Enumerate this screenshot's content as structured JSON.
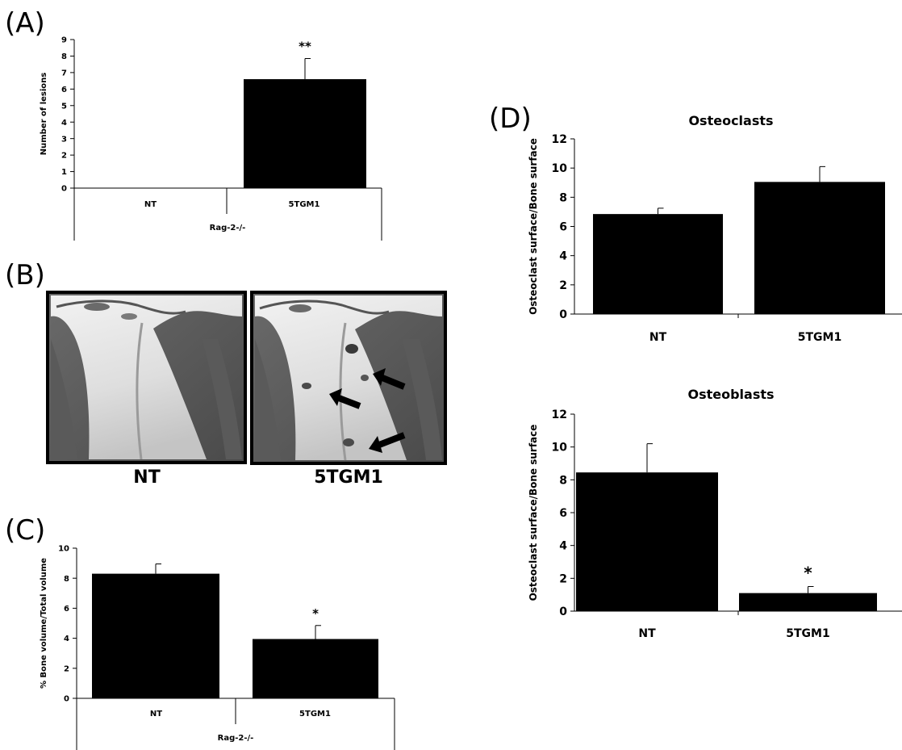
{
  "panel_labels": {
    "a": "(A)",
    "b": "(B)",
    "c": "(C)",
    "d": "(D)"
  },
  "photos": {
    "left_label": "NT",
    "right_label": "5TGM1"
  },
  "chart_data": [
    {
      "id": "A",
      "type": "bar",
      "title": "",
      "ylabel": "Number of lesions",
      "xlabel": "",
      "group_label": "Rag-2-/-",
      "categories": [
        "NT",
        "5TGM1"
      ],
      "values": [
        0,
        6.6
      ],
      "errors": [
        0,
        1.25
      ],
      "ylim": [
        0,
        9
      ],
      "yticks": [
        0,
        1,
        2,
        3,
        4,
        5,
        6,
        7,
        8,
        9
      ],
      "annotations": [
        "",
        "**"
      ],
      "grid": false
    },
    {
      "id": "C",
      "type": "bar",
      "title": "",
      "ylabel": "% Bone volume/Total volume",
      "xlabel": "",
      "group_label": "Rag-2-/-",
      "categories": [
        "NT",
        "5TGM1"
      ],
      "values": [
        8.3,
        3.95
      ],
      "errors": [
        0.65,
        0.9
      ],
      "ylim": [
        0,
        10
      ],
      "yticks": [
        0,
        2,
        4,
        6,
        8,
        10
      ],
      "annotations": [
        "",
        "*"
      ],
      "grid": false
    },
    {
      "id": "D1",
      "type": "bar",
      "title": "Osteoclasts",
      "ylabel": "Osteoclast surface/Bone surface",
      "xlabel": "",
      "categories": [
        "NT",
        "5TGM1"
      ],
      "values": [
        6.85,
        9.05
      ],
      "errors": [
        0.4,
        1.05
      ],
      "ylim": [
        0,
        12
      ],
      "yticks": [
        0,
        2,
        4,
        6,
        8,
        10,
        12
      ],
      "annotations": [
        "",
        ""
      ],
      "grid": false
    },
    {
      "id": "D2",
      "type": "bar",
      "title": "Osteoblasts",
      "ylabel": "Osteoclast surface/Bone surface",
      "xlabel": "",
      "categories": [
        "NT",
        "5TGM1"
      ],
      "values": [
        8.45,
        1.1
      ],
      "errors": [
        1.75,
        0.4
      ],
      "ylim": [
        0,
        12
      ],
      "yticks": [
        0,
        2,
        4,
        6,
        8,
        10,
        12
      ],
      "annotations": [
        "",
        "*"
      ],
      "grid": false
    }
  ]
}
